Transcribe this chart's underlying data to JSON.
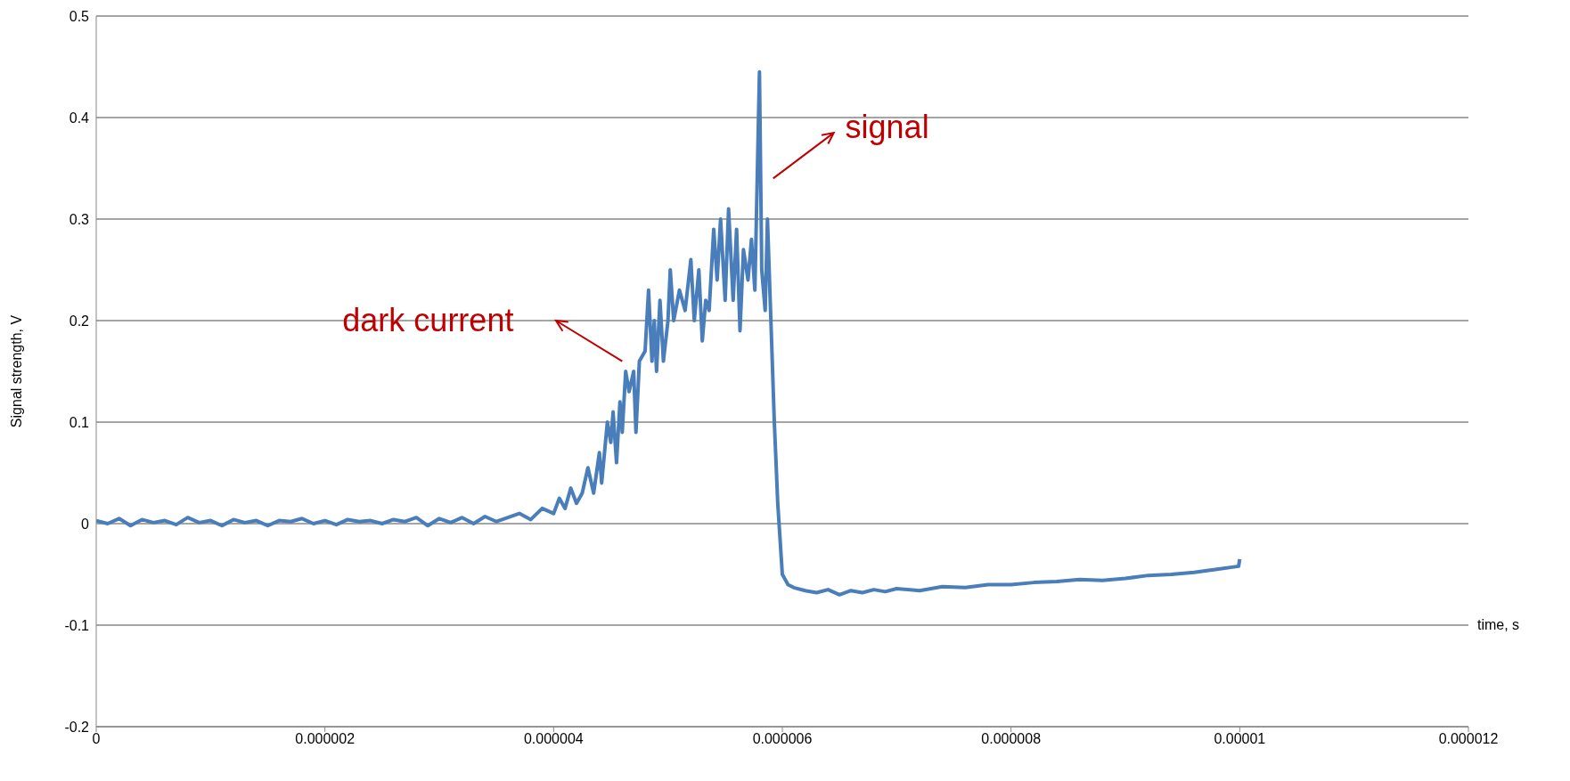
{
  "chart_data": {
    "type": "line",
    "ylabel": "Signal strength, V",
    "xlabel": "time, s",
    "xlim": [
      0,
      1.2e-05
    ],
    "xticks": [
      0,
      {
        "value": 2e-06,
        "label": "0.000002"
      },
      {
        "value": 4e-06,
        "label": "0.000004"
      },
      {
        "value": 6e-06,
        "label": "0.000006"
      },
      {
        "value": 8e-06,
        "label": "0.000008"
      },
      {
        "value": 1e-05,
        "label": "0.00001"
      },
      {
        "value": 1.2e-05,
        "label": "0.000012"
      }
    ],
    "ylim": [
      -0.2,
      0.5
    ],
    "yticks": [
      -0.2,
      -0.1,
      0,
      0.1,
      0.2,
      0.3,
      0.4,
      0.5
    ],
    "grid": "y",
    "marker": "none",
    "line_style": "solid",
    "annotations": [
      "dark current",
      "signal"
    ],
    "series": [
      {
        "color": "#4a7ebb",
        "x": [
          0,
          1e-07,
          2e-07,
          3e-07,
          4e-07,
          5e-07,
          6e-07,
          7e-07,
          8e-07,
          9e-07,
          1e-06,
          1.1e-06,
          1.2e-06,
          1.3e-06,
          1.4e-06,
          1.5e-06,
          1.6e-06,
          1.7e-06,
          1.8e-06,
          1.9e-06,
          2e-06,
          2.1e-06,
          2.2e-06,
          2.3e-06,
          2.4e-06,
          2.5e-06,
          2.6e-06,
          2.7e-06,
          2.8e-06,
          2.9e-06,
          3e-06,
          3.1e-06,
          3.2e-06,
          3.3e-06,
          3.4e-06,
          3.5e-06,
          3.6e-06,
          3.7e-06,
          3.8e-06,
          3.9e-06,
          4e-06,
          4.05e-06,
          4.1e-06,
          4.15e-06,
          4.2e-06,
          4.25e-06,
          4.3e-06,
          4.35e-06,
          4.4e-06,
          4.42e-06,
          4.47e-06,
          4.5e-06,
          4.52e-06,
          4.55e-06,
          4.58e-06,
          4.6e-06,
          4.63e-06,
          4.66e-06,
          4.7e-06,
          4.72e-06,
          4.75e-06,
          4.8e-06,
          4.83e-06,
          4.86e-06,
          4.88e-06,
          4.9e-06,
          4.93e-06,
          4.96e-06,
          5e-06,
          5.02e-06,
          5.05e-06,
          5.1e-06,
          5.15e-06,
          5.2e-06,
          5.23e-06,
          5.27e-06,
          5.3e-06,
          5.33e-06,
          5.36e-06,
          5.4e-06,
          5.43e-06,
          5.46e-06,
          5.5e-06,
          5.53e-06,
          5.57e-06,
          5.6e-06,
          5.63e-06,
          5.66e-06,
          5.7e-06,
          5.73e-06,
          5.76e-06,
          5.8e-06,
          5.82e-06,
          5.85e-06,
          5.87e-06,
          5.9e-06,
          5.93e-06,
          5.96e-06,
          6e-06,
          6.05e-06,
          6.1e-06,
          6.2e-06,
          6.3e-06,
          6.4e-06,
          6.5e-06,
          6.6e-06,
          6.7e-06,
          6.8e-06,
          6.9e-06,
          7e-06,
          7.2e-06,
          7.4e-06,
          7.6e-06,
          7.8e-06,
          8e-06,
          8.2e-06,
          8.4e-06,
          8.6e-06,
          8.8e-06,
          9e-06,
          9.2e-06,
          9.4e-06,
          9.6e-06,
          9.8e-06,
          9.99e-06,
          1e-05
        ],
        "values": [
          0.003,
          0.0,
          0.005,
          -0.002,
          0.004,
          0.001,
          0.003,
          -0.001,
          0.006,
          0.001,
          0.003,
          -0.002,
          0.004,
          0.001,
          0.003,
          -0.002,
          0.003,
          0.002,
          0.005,
          0.0,
          0.003,
          -0.001,
          0.004,
          0.002,
          0.003,
          0.0,
          0.004,
          0.002,
          0.006,
          -0.002,
          0.005,
          0.001,
          0.006,
          0.0,
          0.007,
          0.002,
          0.006,
          0.01,
          0.004,
          0.015,
          0.01,
          0.025,
          0.015,
          0.035,
          0.02,
          0.03,
          0.055,
          0.03,
          0.07,
          0.04,
          0.1,
          0.08,
          0.11,
          0.06,
          0.12,
          0.09,
          0.15,
          0.13,
          0.15,
          0.09,
          0.16,
          0.17,
          0.23,
          0.16,
          0.2,
          0.15,
          0.22,
          0.16,
          0.2,
          0.25,
          0.2,
          0.23,
          0.21,
          0.26,
          0.2,
          0.25,
          0.18,
          0.22,
          0.21,
          0.29,
          0.24,
          0.3,
          0.22,
          0.31,
          0.22,
          0.29,
          0.19,
          0.27,
          0.24,
          0.28,
          0.23,
          0.445,
          0.25,
          0.21,
          0.3,
          0.2,
          0.1,
          0.02,
          -0.05,
          -0.06,
          -0.063,
          -0.066,
          -0.068,
          -0.065,
          -0.07,
          -0.066,
          -0.068,
          -0.065,
          -0.067,
          -0.064,
          -0.066,
          -0.062,
          -0.063,
          -0.06,
          -0.06,
          -0.058,
          -0.057,
          -0.055,
          -0.056,
          -0.054,
          -0.051,
          -0.05,
          -0.048,
          -0.045,
          -0.042,
          -0.035
        ]
      }
    ]
  }
}
